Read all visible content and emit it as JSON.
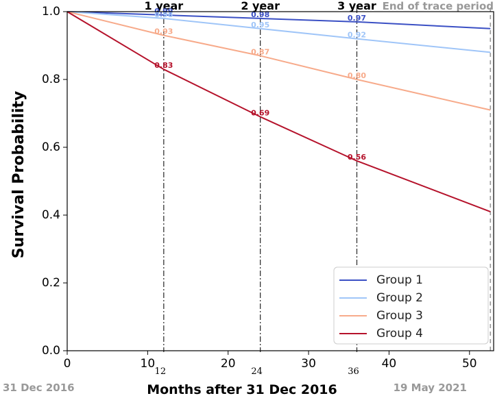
{
  "chart_data": {
    "type": "line",
    "ylabel": "Survival Probability",
    "xlabel": "Months after 31 Dec 2016",
    "xlim": [
      0,
      53
    ],
    "ylim": [
      0.0,
      1.0
    ],
    "xticks": [
      0,
      10,
      20,
      30,
      40,
      50
    ],
    "yticks": [
      0.0,
      0.2,
      0.4,
      0.6,
      0.8,
      1.0
    ],
    "ytick_labels": [
      "0.0",
      "0.2",
      "0.4",
      "0.6",
      "0.8",
      "1.0"
    ],
    "legend_position": "lower-right",
    "series": [
      {
        "name": "Group 1",
        "color": "#3a4fc4",
        "x": [
          0,
          12,
          24,
          36,
          52.6
        ],
        "y": [
          1.0,
          0.99,
          0.98,
          0.97,
          0.95
        ]
      },
      {
        "name": "Group 2",
        "color": "#9fc5f8",
        "x": [
          0,
          12,
          24,
          36,
          52.6
        ],
        "y": [
          1.0,
          0.98,
          0.95,
          0.92,
          0.88
        ]
      },
      {
        "name": "Group 3",
        "color": "#f7aa8a",
        "x": [
          0,
          12,
          24,
          36,
          52.6
        ],
        "y": [
          1.0,
          0.93,
          0.87,
          0.8,
          0.71
        ]
      },
      {
        "name": "Group 4",
        "color": "#b5122b",
        "x": [
          0,
          12,
          24,
          36,
          52.6
        ],
        "y": [
          1.0,
          0.83,
          0.69,
          0.56,
          0.41
        ]
      }
    ],
    "vlines": [
      {
        "x": 12,
        "title": "1 year",
        "sublabel": "12"
      },
      {
        "x": 24,
        "title": "2 year",
        "sublabel": "24"
      },
      {
        "x": 36,
        "title": "3 year",
        "sublabel": "36"
      },
      {
        "x": 52.6,
        "title": "End of trace period",
        "sublabel": ""
      }
    ],
    "point_labels": [
      {
        "series": 0,
        "x": 12,
        "text": "0.99"
      },
      {
        "series": 0,
        "x": 24,
        "text": "0.98"
      },
      {
        "series": 0,
        "x": 36,
        "text": "0.97"
      },
      {
        "series": 1,
        "x": 12,
        "text": "0.98"
      },
      {
        "series": 1,
        "x": 24,
        "text": "0.95"
      },
      {
        "series": 1,
        "x": 36,
        "text": "0.92"
      },
      {
        "series": 2,
        "x": 12,
        "text": "0.93"
      },
      {
        "series": 2,
        "x": 24,
        "text": "0.87"
      },
      {
        "series": 2,
        "x": 36,
        "text": "0.80"
      },
      {
        "series": 3,
        "x": 12,
        "text": "0.83"
      },
      {
        "series": 3,
        "x": 24,
        "text": "0.69"
      },
      {
        "series": 3,
        "x": 36,
        "text": "0.56"
      }
    ],
    "start_date": "31 Dec 2016",
    "end_date": "19 May 2021"
  }
}
